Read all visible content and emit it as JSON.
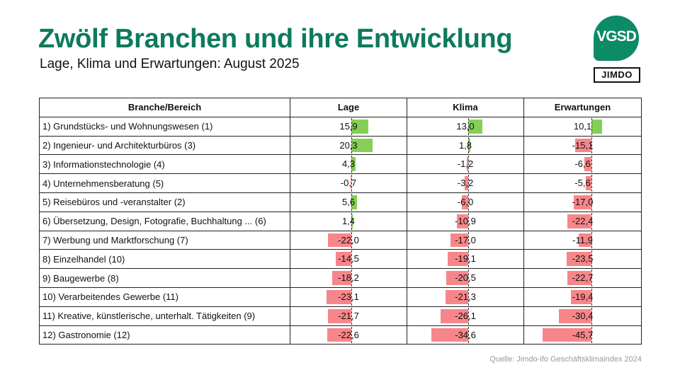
{
  "header": {
    "title": "Zwölf Branchen und ihre Entwicklung",
    "subtitle": "Lage, Klima und Erwartungen: August 2025"
  },
  "logos": {
    "vgsd": "VGSD",
    "jimdo": "JIMDO"
  },
  "colors": {
    "title": "#0d7a5c",
    "positive": "#86cf57",
    "negative": "#f7868a",
    "logo": "#0d8a66"
  },
  "source": "Quelle: Jimdo-ifo Geschäftsklimaindex 2024",
  "chart_data": {
    "type": "table",
    "title": "Zwölf Branchen und ihre Entwicklung",
    "subtitle": "Lage, Klima und Erwartungen: August 2025",
    "columns": [
      "Branche/Bereich",
      "Lage",
      "Klima",
      "Erwartungen"
    ],
    "rows": [
      {
        "name": "1) Grundstücks- und Wohnungswesen (1)",
        "values": [
          15.9,
          13.0,
          10.1
        ],
        "labels": [
          "15,9",
          "13,0",
          "10,1"
        ]
      },
      {
        "name": "2) Ingenieur- und Architekturbüros (3)",
        "values": [
          20.3,
          1.8,
          -15.1
        ],
        "labels": [
          "20,3",
          "1,8",
          "-15,1"
        ]
      },
      {
        "name": "3) Informationstechnologie (4)",
        "values": [
          4.3,
          -1.2,
          -6.6
        ],
        "labels": [
          "4,3",
          "-1,2",
          "-6,6"
        ]
      },
      {
        "name": "4) Unternehmensberatung (5)",
        "values": [
          -0.7,
          -3.2,
          -5.6
        ],
        "labels": [
          "-0,7",
          "-3,2",
          "-5,6"
        ]
      },
      {
        "name": "5) Reisebüros und -veranstalter (2)",
        "values": [
          5.6,
          -6.0,
          -17.0
        ],
        "labels": [
          "5,6",
          "-6,0",
          "-17,0"
        ]
      },
      {
        "name": "6) Übersetzung, Design, Fotografie, Buchhaltung ... (6)",
        "values": [
          1.4,
          -10.9,
          -22.4
        ],
        "labels": [
          "1,4",
          "-10,9",
          "-22,4"
        ]
      },
      {
        "name": "7) Werbung und Marktforschung (7)",
        "values": [
          -22.0,
          -17.0,
          -11.9
        ],
        "labels": [
          "-22,0",
          "-17,0",
          "-11,9"
        ]
      },
      {
        "name": "8) Einzelhandel (10)",
        "values": [
          -14.5,
          -19.1,
          -23.5
        ],
        "labels": [
          "-14,5",
          "-19,1",
          "-23,5"
        ]
      },
      {
        "name": "9) Baugewerbe (8)",
        "values": [
          -18.2,
          -20.5,
          -22.7
        ],
        "labels": [
          "-18,2",
          "-20,5",
          "-22,7"
        ]
      },
      {
        "name": "10) Verarbeitendes Gewerbe (11)",
        "values": [
          -23.1,
          -21.3,
          -19.4
        ],
        "labels": [
          "-23,1",
          "-21,3",
          "-19,4"
        ]
      },
      {
        "name": "11) Kreative, künstlerische, unterhalt. Tätigkeiten (9)",
        "values": [
          -21.7,
          -26.1,
          -30.4
        ],
        "labels": [
          "-21,7",
          "-26,1",
          "-30,4"
        ]
      },
      {
        "name": "12) Gastronomie (12)",
        "values": [
          -22.6,
          -34.6,
          -45.7
        ],
        "labels": [
          "-22,6",
          "-34,6",
          "-45,7"
        ]
      }
    ]
  }
}
